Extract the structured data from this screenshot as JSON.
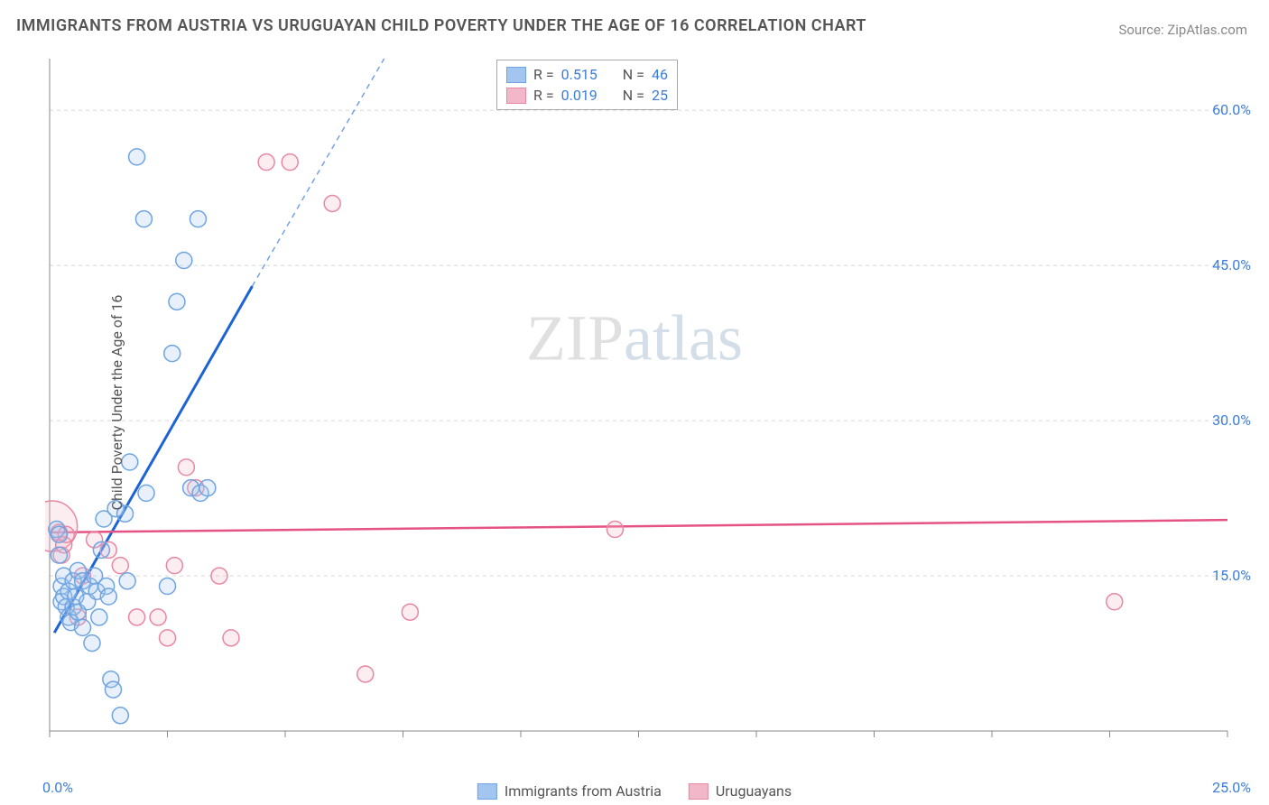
{
  "title": "IMMIGRANTS FROM AUSTRIA VS URUGUAYAN CHILD POVERTY UNDER THE AGE OF 16 CORRELATION CHART",
  "source": "Source: ZipAtlas.com",
  "y_axis_label": "Child Poverty Under the Age of 16",
  "watermark_a": "ZIP",
  "watermark_b": "atlas",
  "chart": {
    "type": "scatter",
    "background_color": "#ffffff",
    "grid_color": "#d8d8d8",
    "axis_color": "#888888",
    "tick_color": "#888888",
    "tick_label_color": "#3b7dd8",
    "xlim": [
      0,
      25
    ],
    "ylim": [
      0,
      65
    ],
    "xticks": [
      0,
      2.5,
      5,
      7.5,
      10,
      12.5,
      15,
      17.5,
      20,
      22.5,
      25
    ],
    "xtick_labels": {
      "0": "0.0%",
      "25": "25.0%"
    },
    "yticks": [
      15,
      30,
      45,
      60
    ],
    "ytick_labels": {
      "15": "15.0%",
      "30": "30.0%",
      "45": "45.0%",
      "60": "60.0%"
    },
    "marker_radius": 9,
    "marker_stroke_width": 1.5,
    "marker_fill_opacity": 0.25,
    "series_a": {
      "name": "Immigrants from Austria",
      "legend_label": "Immigrants from Austria",
      "color_fill": "#a3c6f0",
      "color_stroke": "#6fa4e0",
      "reg_color": "#1b63d6",
      "r_label": "R =",
      "r_value": "0.515",
      "n_label": "N =",
      "n_value": "46",
      "reg_line": {
        "x1": 0.1,
        "y1": 9.5,
        "x2": 4.3,
        "y2": 43,
        "dash_x2": 7.1,
        "dash_y2": 65
      },
      "points": [
        [
          0.15,
          19.5
        ],
        [
          0.2,
          19.0
        ],
        [
          0.2,
          17.0
        ],
        [
          0.25,
          12.5
        ],
        [
          0.25,
          14.0
        ],
        [
          0.3,
          13.0
        ],
        [
          0.3,
          15.0
        ],
        [
          0.35,
          12.0
        ],
        [
          0.4,
          11.0
        ],
        [
          0.4,
          13.5
        ],
        [
          0.45,
          10.5
        ],
        [
          0.5,
          14.5
        ],
        [
          0.5,
          12.0
        ],
        [
          0.55,
          13.0
        ],
        [
          0.6,
          15.5
        ],
        [
          0.6,
          11.5
        ],
        [
          0.7,
          14.5
        ],
        [
          0.7,
          10.0
        ],
        [
          0.8,
          12.5
        ],
        [
          0.85,
          14.0
        ],
        [
          0.9,
          8.5
        ],
        [
          0.95,
          15.0
        ],
        [
          1.0,
          13.5
        ],
        [
          1.05,
          11.0
        ],
        [
          1.1,
          17.5
        ],
        [
          1.15,
          20.5
        ],
        [
          1.2,
          14.0
        ],
        [
          1.25,
          13.0
        ],
        [
          1.3,
          5.0
        ],
        [
          1.35,
          4.0
        ],
        [
          1.4,
          21.5
        ],
        [
          1.5,
          1.5
        ],
        [
          1.6,
          21.0
        ],
        [
          1.65,
          14.5
        ],
        [
          1.7,
          26.0
        ],
        [
          1.85,
          55.5
        ],
        [
          2.0,
          49.5
        ],
        [
          2.05,
          23.0
        ],
        [
          2.5,
          14.0
        ],
        [
          2.6,
          36.5
        ],
        [
          2.7,
          41.5
        ],
        [
          2.85,
          45.5
        ],
        [
          3.0,
          23.5
        ],
        [
          3.15,
          49.5
        ],
        [
          3.2,
          23.0
        ],
        [
          3.35,
          23.5
        ]
      ]
    },
    "series_b": {
      "name": "Uruguayans",
      "legend_label": "Uruguayans",
      "color_fill": "#f2b8c9",
      "color_stroke": "#e887a3",
      "reg_color": "#e55384",
      "r_label": "R =",
      "r_value": "0.019",
      "n_label": "N =",
      "n_value": "25",
      "reg_line": {
        "x1": 0,
        "y1": 19.2,
        "x2": 25,
        "y2": 20.4
      },
      "points": [
        [
          0.05,
          19.8,
          28
        ],
        [
          0.2,
          19.2
        ],
        [
          0.25,
          17.0
        ],
        [
          0.3,
          18.0
        ],
        [
          0.35,
          19.0
        ],
        [
          0.6,
          11.0
        ],
        [
          0.7,
          15.0
        ],
        [
          0.95,
          18.5
        ],
        [
          1.25,
          17.5
        ],
        [
          1.5,
          16.0
        ],
        [
          1.85,
          11.0
        ],
        [
          2.3,
          11.0
        ],
        [
          2.5,
          9.0
        ],
        [
          2.65,
          16.0
        ],
        [
          2.9,
          25.5
        ],
        [
          3.1,
          23.5
        ],
        [
          3.6,
          15.0
        ],
        [
          3.85,
          9.0
        ],
        [
          4.6,
          55.0
        ],
        [
          5.1,
          55.0
        ],
        [
          6.0,
          51.0
        ],
        [
          6.7,
          5.5
        ],
        [
          7.65,
          11.5
        ],
        [
          12.0,
          19.5
        ],
        [
          22.6,
          12.5
        ]
      ]
    }
  },
  "legend_top": {
    "rows": [
      {
        "fill": "#a3c6f0",
        "stroke": "#6fa4e0"
      },
      {
        "fill": "#f2b8c9",
        "stroke": "#e887a3"
      }
    ]
  },
  "legend_bottom": {
    "items": [
      {
        "label": "Immigrants from Austria",
        "fill": "#a3c6f0",
        "stroke": "#6fa4e0"
      },
      {
        "label": "Uruguayans",
        "fill": "#f2b8c9",
        "stroke": "#e887a3"
      }
    ]
  }
}
